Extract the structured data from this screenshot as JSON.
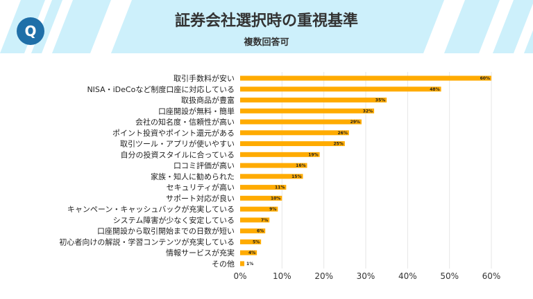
{
  "header": {
    "title": "証券会社選択時の重視基準",
    "subtitle": "複数回答可",
    "badge": "Q",
    "badge_color": "#1f6fa8",
    "band_color": "#cdf0fb"
  },
  "chart_data": {
    "type": "bar",
    "orientation": "horizontal",
    "categories": [
      "取引手数料が安い",
      "NISA・iDeCoなど制度口座に対応している",
      "取扱商品が豊富",
      "口座開設が無料・簡単",
      "会社の知名度・信頼性が高い",
      "ポイント投資やポイント還元がある",
      "取引ツール・アプリが使いやすい",
      "自分の投資スタイルに合っている",
      "口コミ評価が高い",
      "家族・知人に勧められた",
      "セキュリティが高い",
      "サポート対応が良い",
      "キャンペーン・キャッシュバックが充実している",
      "システム障害が少なく安定している",
      "口座開設から取引開始までの日数が短い",
      "初心者向けの解説・学習コンテンツが充実している",
      "情報サービスが充実",
      "その他"
    ],
    "values": [
      60,
      48,
      35,
      32,
      29,
      26,
      25,
      19,
      16,
      15,
      11,
      10,
      9,
      7,
      6,
      5,
      4,
      1
    ],
    "data_labels": [
      "60%",
      "48%",
      "35%",
      "32%",
      "29%",
      "26%",
      "25%",
      "19%",
      "16%",
      "15%",
      "11%",
      "10%",
      "9%",
      "7%",
      "6%",
      "5%",
      "4%",
      "1%"
    ],
    "xlim": [
      0,
      60
    ],
    "xticks": [
      "0%",
      "10%",
      "20%",
      "30%",
      "40%",
      "50%",
      "60%"
    ],
    "grid": true,
    "bar_color": "#ffab00"
  }
}
